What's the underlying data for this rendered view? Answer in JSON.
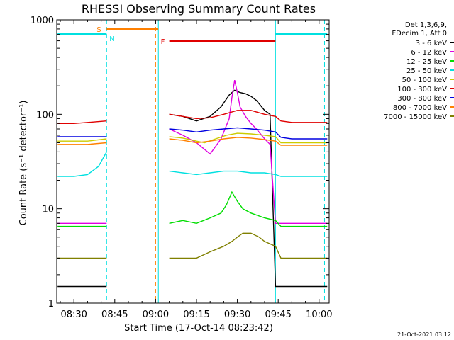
{
  "chart_data": {
    "type": "line",
    "title": "RHESSI Observing Summary Count Rates",
    "xlabel": "Start Time (17-Oct-14 08:23:42)",
    "ylabel": "Count Rate (s⁻¹ detector⁻¹)",
    "yscale": "log",
    "ylim": [
      1,
      1000
    ],
    "xlim_minutes": [
      23.7,
      123.7
    ],
    "x_unit": "minutes after 08:00 UT",
    "x_ticks": [
      {
        "label": "08:30",
        "value": 30
      },
      {
        "label": "08:45",
        "value": 45
      },
      {
        "label": "09:00",
        "value": 60
      },
      {
        "label": "09:15",
        "value": 75
      },
      {
        "label": "09:30",
        "value": 90
      },
      {
        "label": "09:45",
        "value": 105
      },
      {
        "label": "10:00",
        "value": 120
      }
    ],
    "y_ticks": [
      {
        "label": "1",
        "value": 1
      },
      {
        "label": "10",
        "value": 10
      },
      {
        "label": "100",
        "value": 100
      },
      {
        "label": "1000",
        "value": 1000
      }
    ],
    "legend_header": [
      "Det 1,3,6,9,",
      "FDecim 1, Att 0"
    ],
    "series": [
      {
        "name": "3 - 6 keV",
        "color": "#000000",
        "x": [
          24,
          30,
          35,
          42,
          48,
          55,
          61,
          65,
          70,
          75,
          80,
          84,
          87,
          89,
          91,
          93,
          95,
          97,
          100,
          102,
          104,
          106,
          110,
          115,
          120,
          123
        ],
        "y": [
          1.5,
          1.5,
          1.5,
          1.5,
          null,
          null,
          null,
          100,
          95,
          85,
          95,
          120,
          160,
          180,
          170,
          165,
          155,
          140,
          110,
          100,
          1.5,
          1.5,
          1.5,
          1.5,
          1.5,
          1.5
        ]
      },
      {
        "name": "6 - 12 keV",
        "color": "#e000e0",
        "x": [
          24,
          30,
          35,
          42,
          48,
          55,
          61,
          65,
          70,
          75,
          80,
          84,
          87,
          88,
          89,
          90,
          91,
          93,
          95,
          97,
          100,
          102,
          104,
          106,
          110,
          115,
          120,
          123
        ],
        "y": [
          7,
          7,
          7,
          7,
          null,
          null,
          null,
          70,
          60,
          50,
          38,
          55,
          90,
          150,
          230,
          170,
          120,
          95,
          80,
          70,
          55,
          48,
          7,
          7,
          7,
          7,
          7,
          7
        ]
      },
      {
        "name": "12 - 25 keV",
        "color": "#00dd00",
        "x": [
          24,
          30,
          35,
          42,
          48,
          55,
          61,
          65,
          70,
          75,
          80,
          84,
          86,
          88,
          90,
          92,
          95,
          100,
          104,
          106,
          110,
          115,
          120,
          123
        ],
        "y": [
          6.5,
          6.5,
          6.5,
          6.5,
          null,
          null,
          null,
          7,
          7.5,
          7,
          8,
          9,
          11,
          15,
          12,
          10,
          9,
          8,
          7.5,
          6.5,
          6.5,
          6.5,
          6.5,
          6.5
        ]
      },
      {
        "name": "25 - 50 keV",
        "color": "#00e0e0",
        "x": [
          24,
          30,
          35,
          39,
          42,
          48,
          55,
          61,
          65,
          70,
          75,
          80,
          85,
          90,
          95,
          100,
          104,
          106,
          110,
          115,
          120,
          123
        ],
        "y": [
          22,
          22,
          23,
          28,
          40,
          null,
          null,
          null,
          25,
          24,
          23,
          24,
          25,
          25,
          24,
          24,
          23,
          22,
          22,
          22,
          22,
          22
        ]
      },
      {
        "name": "50 - 100 keV",
        "color": "#cccc00",
        "x": [
          24,
          30,
          35,
          42,
          48,
          55,
          61,
          65,
          70,
          75,
          78,
          82,
          86,
          90,
          95,
          100,
          104,
          106,
          110,
          115,
          120,
          123
        ],
        "y": [
          52,
          52,
          52,
          55,
          null,
          null,
          null,
          58,
          56,
          52,
          50,
          55,
          60,
          63,
          62,
          60,
          58,
          50,
          50,
          50,
          50,
          50
        ]
      },
      {
        "name": "100 - 300 keV",
        "color": "#e00000",
        "x": [
          24,
          30,
          35,
          42,
          48,
          55,
          61,
          65,
          70,
          75,
          80,
          85,
          90,
          95,
          100,
          104,
          106,
          110,
          115,
          120,
          123
        ],
        "y": [
          80,
          80,
          82,
          85,
          null,
          null,
          null,
          100,
          95,
          90,
          92,
          100,
          110,
          110,
          100,
          95,
          85,
          82,
          82,
          82,
          82
        ]
      },
      {
        "name": "300 - 800 keV",
        "color": "#0000e0",
        "x": [
          24,
          30,
          35,
          42,
          48,
          55,
          61,
          65,
          70,
          75,
          80,
          85,
          90,
          95,
          100,
          104,
          106,
          110,
          115,
          120,
          123
        ],
        "y": [
          58,
          58,
          58,
          58,
          null,
          null,
          null,
          70,
          68,
          65,
          68,
          70,
          72,
          70,
          68,
          65,
          57,
          55,
          55,
          55,
          55
        ]
      },
      {
        "name": "800 - 7000 keV",
        "color": "#ff8000",
        "x": [
          24,
          30,
          35,
          42,
          48,
          55,
          61,
          65,
          70,
          75,
          80,
          85,
          90,
          95,
          100,
          104,
          106,
          110,
          115,
          120,
          123
        ],
        "y": [
          48,
          48,
          48,
          50,
          null,
          null,
          null,
          55,
          53,
          50,
          52,
          55,
          57,
          56,
          54,
          52,
          47,
          47,
          47,
          47,
          47
        ]
      },
      {
        "name": "7000 - 15000 keV",
        "color": "#808000",
        "x": [
          24,
          30,
          35,
          42,
          48,
          55,
          61,
          65,
          70,
          75,
          80,
          85,
          88,
          90,
          92,
          95,
          98,
          100,
          104,
          106,
          110,
          115,
          120,
          123
        ],
        "y": [
          3,
          3,
          3,
          3,
          null,
          null,
          null,
          3,
          3,
          3,
          3.5,
          4,
          4.5,
          5,
          5.5,
          5.5,
          5,
          4.5,
          4,
          3,
          3,
          3,
          3,
          3
        ]
      }
    ],
    "intervals": [
      {
        "label": "S",
        "color": "#ff8000",
        "start": 42,
        "end": 61
      },
      {
        "label": "N",
        "color": "#00e0e0",
        "start": 24,
        "end": 42
      },
      {
        "label": "N",
        "color": "#00e0e0",
        "start": 104,
        "end": 123
      },
      {
        "label": "F",
        "color": "#e00000",
        "start": 65,
        "end": 104
      }
    ],
    "vertical_markers": [
      {
        "value": 42,
        "color": "#00e0e0",
        "style": "dashed"
      },
      {
        "value": 61,
        "color": "#00e0e0",
        "style": "solid"
      },
      {
        "value": 60,
        "color": "#ff8000",
        "style": "dashed"
      },
      {
        "value": 104,
        "color": "#00e0e0",
        "style": "solid"
      },
      {
        "value": 122,
        "color": "#00e0e0",
        "style": "dashed"
      }
    ]
  },
  "footer_timestamp": "21-Oct-2021 03:12"
}
